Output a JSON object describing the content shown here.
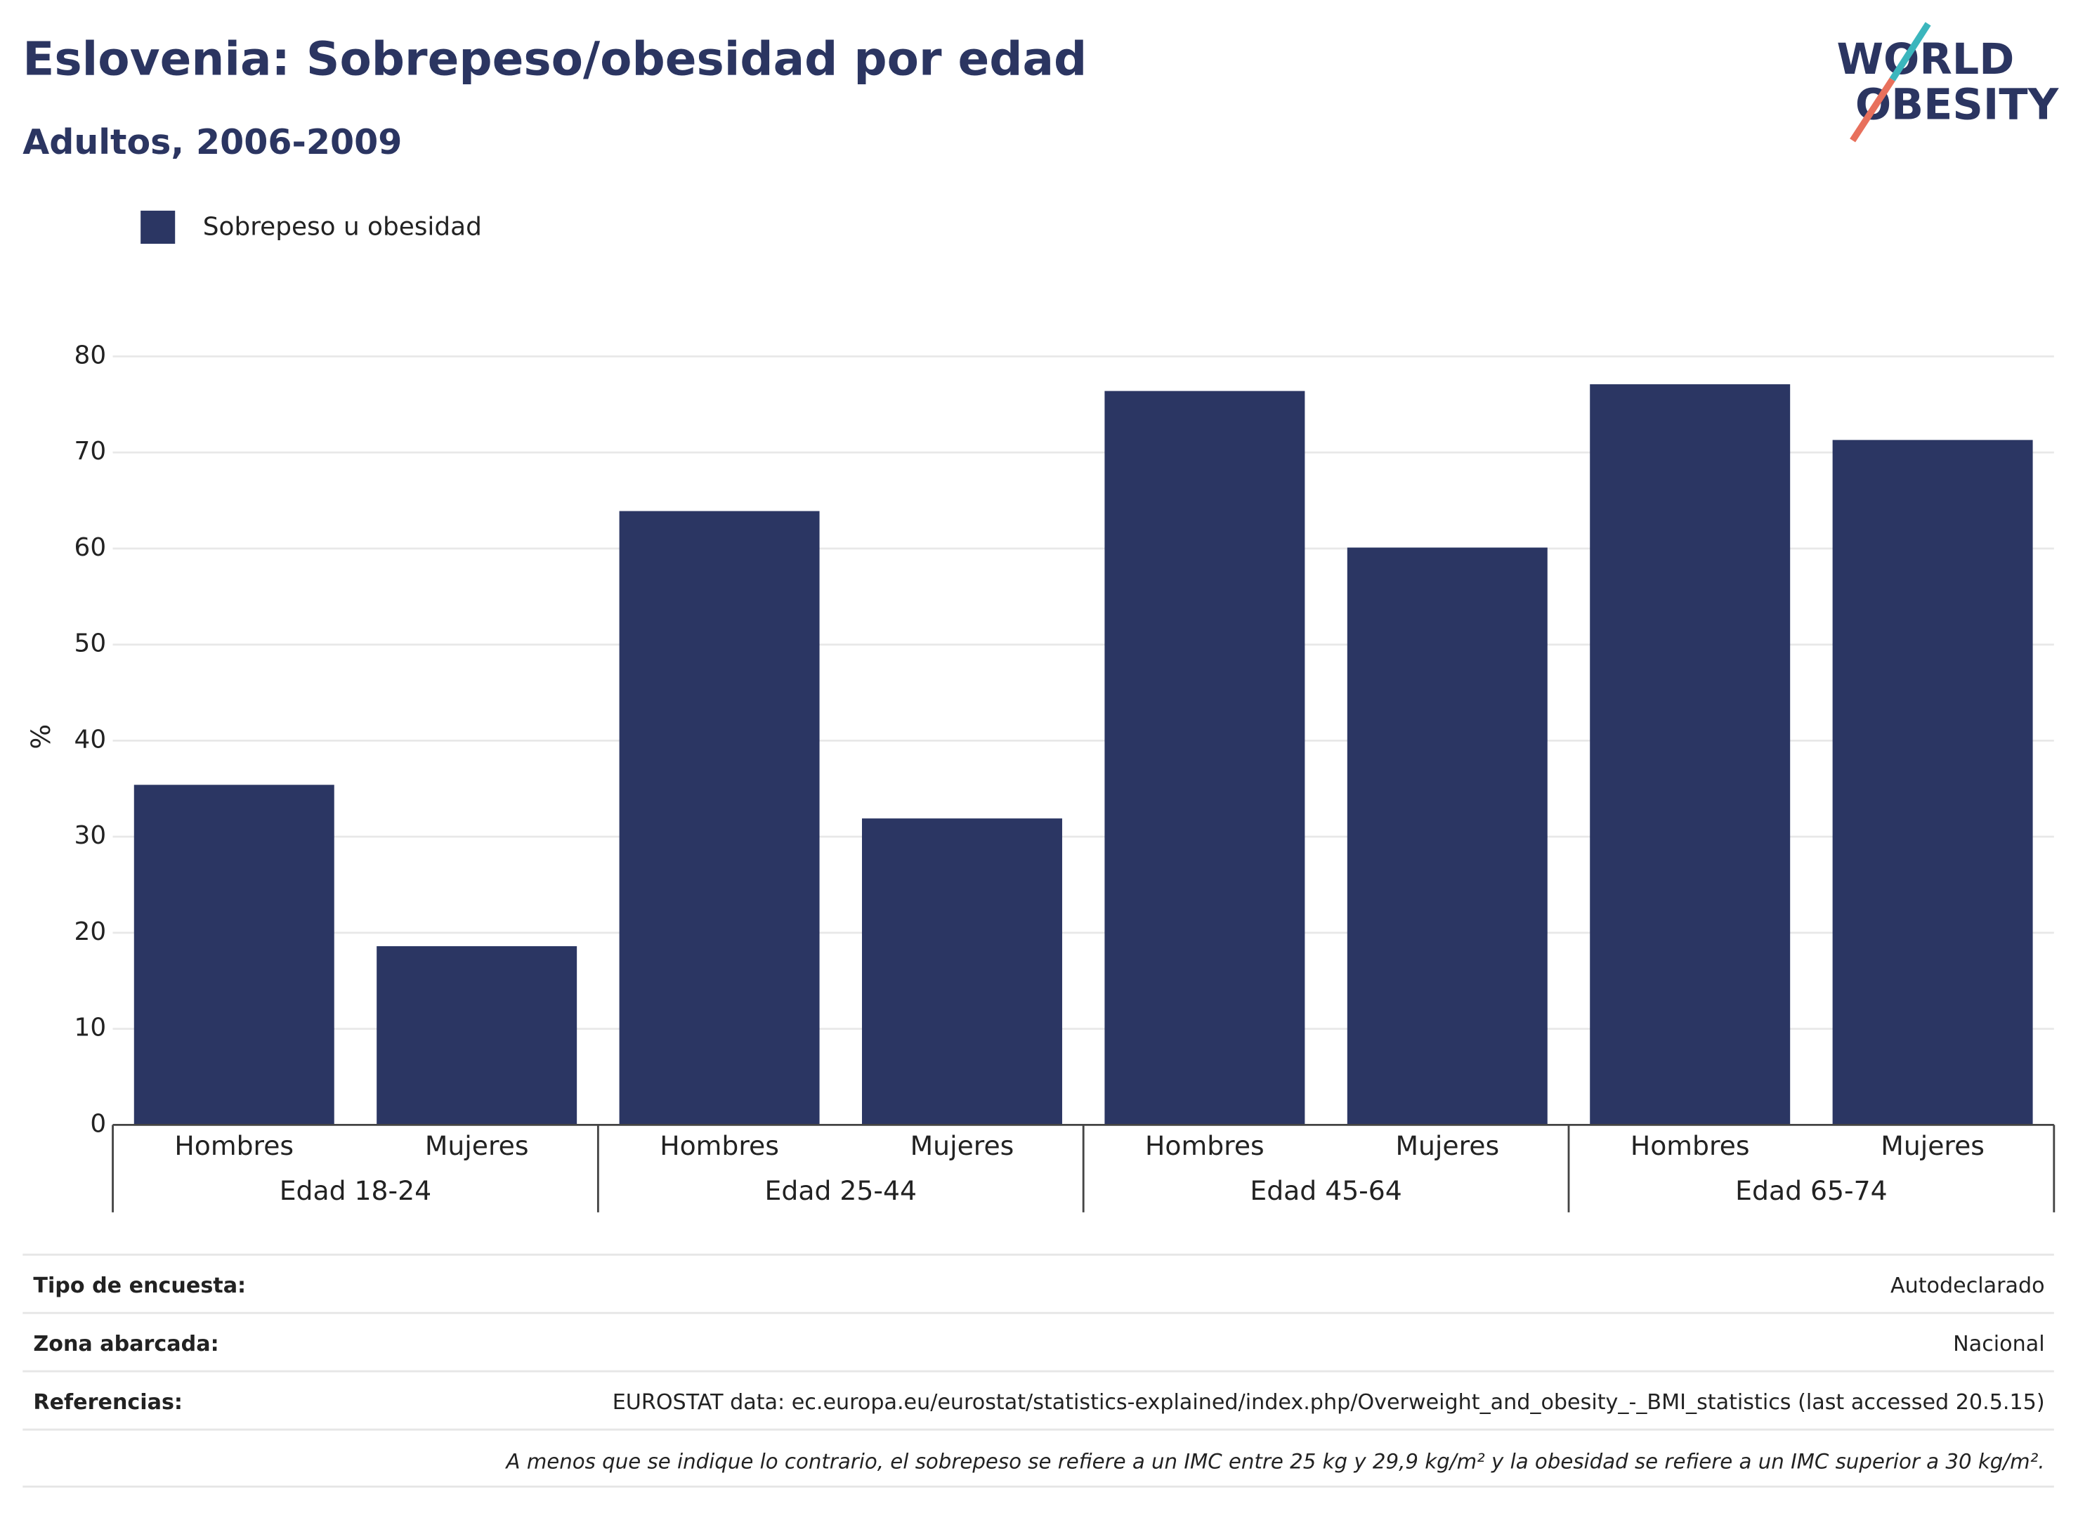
{
  "chart_data": {
    "type": "bar",
    "title": "Eslovenia: Sobrepeso/obesidad por edad",
    "subtitle": "Adultos, 2006-2009",
    "ylabel": "%",
    "categories": [
      "Hombres",
      "Mujeres",
      "Hombres",
      "Mujeres",
      "Hombres",
      "Mujeres",
      "Hombres",
      "Mujeres"
    ],
    "groups": [
      "Edad 18-24",
      "Edad 25-44",
      "Edad 45-64",
      "Edad 65-74"
    ],
    "series": [
      {
        "name": "Sobrepeso u obesidad",
        "color": "#2b3663",
        "values": [
          35.4,
          18.6,
          63.9,
          31.9,
          76.4,
          60.1,
          77.1,
          71.3
        ]
      }
    ],
    "ylim": [
      0,
      80
    ],
    "yticks": [
      0,
      10,
      20,
      30,
      40,
      50,
      60,
      70,
      80
    ],
    "grid": true
  },
  "logo": [
    "WORLD",
    "OBESITY"
  ],
  "footer": {
    "rows": [
      {
        "label": "Tipo de encuesta:",
        "value": "Autodeclarado"
      },
      {
        "label": "Zona abarcada:",
        "value": "Nacional"
      },
      {
        "label": "Referencias:",
        "value": "EUROSTAT data: ec.europa.eu/eurostat/statistics-explained/index.php/Overweight_and_obesity_-_BMI_statistics (last accessed 20.5.15)"
      }
    ],
    "note": "A menos que se indique lo contrario, el sobrepeso se refiere a un IMC entre 25 kg y 29,9 kg/m² y la obesidad se refiere a un IMC superior a 30 kg/m²."
  }
}
